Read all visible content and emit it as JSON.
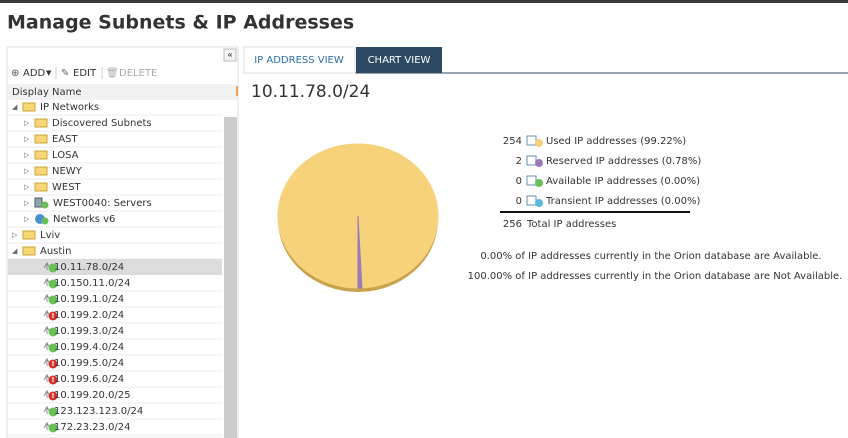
{
  "header": {
    "title": "Manage Subnets & IP Addresses"
  },
  "toolbar": {
    "add": "ADD",
    "edit": "EDIT",
    "delete": "DELETE"
  },
  "tree": {
    "column": "Display Name",
    "items": [
      {
        "label": "IP Networks",
        "icon": "folder",
        "expanded": true,
        "children": [
          {
            "label": "Discovered Subnets",
            "icon": "folder"
          },
          {
            "label": "EAST",
            "icon": "folder"
          },
          {
            "label": "LOSA",
            "icon": "folder"
          },
          {
            "label": "NEWY",
            "icon": "folder"
          },
          {
            "label": "WEST",
            "icon": "folder"
          },
          {
            "label": "WEST0040: Servers",
            "icon": "server"
          },
          {
            "label": "Networks v6",
            "icon": "globe"
          }
        ]
      },
      {
        "label": "Lviv",
        "icon": "folder"
      },
      {
        "label": "Austin",
        "icon": "folder",
        "expanded": true,
        "children": [
          {
            "label": "10.11.78.0/24",
            "icon": "subnet",
            "status": "up",
            "selected": true
          },
          {
            "label": "10.150.11.0/24",
            "icon": "subnet",
            "status": "up"
          },
          {
            "label": "10.199.1.0/24",
            "icon": "subnet",
            "status": "up"
          },
          {
            "label": "10.199.2.0/24",
            "icon": "subnet",
            "status": "down"
          },
          {
            "label": "10.199.3.0/24",
            "icon": "subnet",
            "status": "up"
          },
          {
            "label": "10.199.4.0/24",
            "icon": "subnet",
            "status": "up"
          },
          {
            "label": "10.199.5.0/24",
            "icon": "subnet",
            "status": "down"
          },
          {
            "label": "10.199.6.0/24",
            "icon": "subnet",
            "status": "down"
          },
          {
            "label": "10.199.20.0/25",
            "icon": "subnet",
            "status": "down"
          },
          {
            "label": "123.123.123.0/24",
            "icon": "subnet",
            "status": "up"
          },
          {
            "label": "172.23.23.0/24",
            "icon": "subnet",
            "status": "up"
          }
        ]
      }
    ]
  },
  "tabs": [
    "IP ADDRESS VIEW",
    "CHART VIEW"
  ],
  "subnet": "10.11.78.0/24",
  "legend": [
    {
      "count": 254,
      "label": "Used IP addresses (99.22%)",
      "color": "#f6d27a"
    },
    {
      "count": 2,
      "label": "Reserved IP addresses (0.78%)",
      "color": "#9d79b9"
    },
    {
      "count": 0,
      "label": "Available IP addresses (0.00%)",
      "color": "#6bbf59"
    },
    {
      "count": 0,
      "label": "Transient IP addresses (0.00%)",
      "color": "#5bb8e0"
    }
  ],
  "total": {
    "count": 256,
    "label": "Total IP addresses"
  },
  "notes": [
    "0.00% of IP addresses currently in the Orion database are Available.",
    "100.00% of IP addresses currently in the Orion database are Not Available."
  ]
}
